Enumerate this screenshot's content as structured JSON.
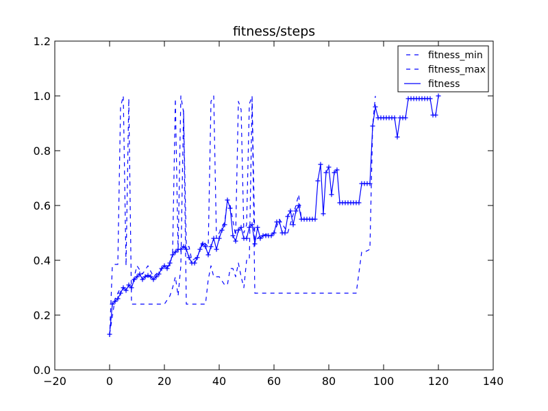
{
  "chart_data": {
    "type": "line",
    "title": "fitness/steps",
    "xlabel": "",
    "ylabel": "",
    "xlim": [
      -20,
      140
    ],
    "ylim": [
      0.0,
      1.2
    ],
    "x_ticks": [
      "−20",
      "0",
      "20",
      "40",
      "60",
      "80",
      "100",
      "120",
      "140"
    ],
    "y_ticks": [
      "0.0",
      "0.2",
      "0.4",
      "0.6",
      "0.8",
      "1.0",
      "1.2"
    ],
    "x_tick_values": [
      -20,
      0,
      20,
      40,
      60,
      80,
      100,
      120,
      140
    ],
    "y_tick_values": [
      0.0,
      0.2,
      0.4,
      0.6,
      0.8,
      1.0,
      1.2
    ],
    "grid": false,
    "legend_position": "top-right",
    "color": "#0000ff",
    "series": [
      {
        "name": "fitness_min",
        "style": "dashed",
        "points": [
          [
            0,
            0.12
          ],
          [
            1,
            0.38
          ],
          [
            2,
            0.385
          ],
          [
            3,
            0.385
          ],
          [
            4,
            0.96
          ],
          [
            5,
            1.0
          ],
          [
            6,
            0.38
          ],
          [
            7,
            0.99
          ],
          [
            8,
            0.24
          ],
          [
            10,
            0.24
          ],
          [
            15,
            0.24
          ],
          [
            20,
            0.24
          ],
          [
            22,
            0.27
          ],
          [
            23,
            0.3
          ],
          [
            24,
            0.34
          ],
          [
            25,
            0.27
          ],
          [
            26,
            0.38
          ],
          [
            27,
            0.95
          ],
          [
            28,
            0.24
          ],
          [
            30,
            0.24
          ],
          [
            33,
            0.24
          ],
          [
            35,
            0.24
          ],
          [
            36,
            0.33
          ],
          [
            37,
            0.38
          ],
          [
            38,
            0.34
          ],
          [
            40,
            0.34
          ],
          [
            42,
            0.31
          ],
          [
            43,
            0.31
          ],
          [
            44,
            0.37
          ],
          [
            45,
            0.37
          ],
          [
            46,
            0.34
          ],
          [
            47,
            0.39
          ],
          [
            48,
            0.34
          ],
          [
            49,
            0.3
          ],
          [
            50,
            0.4
          ],
          [
            51,
            0.4
          ],
          [
            52,
            0.99
          ],
          [
            53,
            0.28
          ],
          [
            60,
            0.28
          ],
          [
            70,
            0.28
          ],
          [
            80,
            0.28
          ],
          [
            90,
            0.28
          ],
          [
            92,
            0.43
          ],
          [
            93,
            0.43
          ],
          [
            95,
            0.44
          ],
          [
            96,
            0.89
          ],
          [
            97,
            1.0
          ]
        ]
      },
      {
        "name": "fitness_max",
        "style": "dashed",
        "points": [
          [
            0,
            0.13
          ],
          [
            2,
            0.26
          ],
          [
            4,
            0.3
          ],
          [
            6,
            0.3
          ],
          [
            8,
            0.3
          ],
          [
            10,
            0.38
          ],
          [
            12,
            0.35
          ],
          [
            14,
            0.38
          ],
          [
            16,
            0.34
          ],
          [
            18,
            0.36
          ],
          [
            20,
            0.38
          ],
          [
            22,
            0.38
          ],
          [
            23,
            0.43
          ],
          [
            24,
            0.99
          ],
          [
            25,
            0.43
          ],
          [
            26,
            1.0
          ],
          [
            27,
            0.94
          ],
          [
            28,
            0.45
          ],
          [
            29,
            0.45
          ],
          [
            30,
            0.4
          ],
          [
            32,
            0.41
          ],
          [
            34,
            0.47
          ],
          [
            36,
            0.45
          ],
          [
            37,
            0.98
          ],
          [
            38,
            1.0
          ],
          [
            39,
            0.48
          ],
          [
            40,
            0.5
          ],
          [
            42,
            0.54
          ],
          [
            43,
            0.62
          ],
          [
            44,
            0.6
          ],
          [
            46,
            0.49
          ],
          [
            47,
            0.98
          ],
          [
            48,
            0.95
          ],
          [
            49,
            0.5
          ],
          [
            50,
            0.53
          ],
          [
            51,
            0.97
          ],
          [
            52,
            1.0
          ],
          [
            53,
            0.47
          ],
          [
            55,
            0.49
          ],
          [
            60,
            0.5
          ],
          [
            62,
            0.55
          ],
          [
            65,
            0.5
          ],
          [
            68,
            0.6
          ],
          [
            69,
            0.64
          ],
          [
            70,
            0.55
          ],
          [
            75,
            0.55
          ]
        ]
      },
      {
        "name": "fitness",
        "style": "solid-markers",
        "points": [
          [
            0,
            0.13
          ],
          [
            1,
            0.24
          ],
          [
            2,
            0.25
          ],
          [
            3,
            0.26
          ],
          [
            4,
            0.28
          ],
          [
            5,
            0.3
          ],
          [
            6,
            0.29
          ],
          [
            7,
            0.31
          ],
          [
            8,
            0.3
          ],
          [
            9,
            0.33
          ],
          [
            10,
            0.34
          ],
          [
            11,
            0.35
          ],
          [
            12,
            0.33
          ],
          [
            13,
            0.34
          ],
          [
            14,
            0.345
          ],
          [
            15,
            0.34
          ],
          [
            16,
            0.33
          ],
          [
            17,
            0.34
          ],
          [
            18,
            0.35
          ],
          [
            19,
            0.37
          ],
          [
            20,
            0.38
          ],
          [
            21,
            0.37
          ],
          [
            22,
            0.39
          ],
          [
            23,
            0.42
          ],
          [
            24,
            0.43
          ],
          [
            25,
            0.44
          ],
          [
            26,
            0.44
          ],
          [
            27,
            0.45
          ],
          [
            28,
            0.44
          ],
          [
            29,
            0.41
          ],
          [
            30,
            0.39
          ],
          [
            31,
            0.39
          ],
          [
            32,
            0.41
          ],
          [
            33,
            0.44
          ],
          [
            34,
            0.46
          ],
          [
            35,
            0.45
          ],
          [
            36,
            0.42
          ],
          [
            37,
            0.45
          ],
          [
            38,
            0.48
          ],
          [
            39,
            0.44
          ],
          [
            40,
            0.48
          ],
          [
            41,
            0.51
          ],
          [
            42,
            0.53
          ],
          [
            43,
            0.62
          ],
          [
            44,
            0.59
          ],
          [
            45,
            0.49
          ],
          [
            46,
            0.47
          ],
          [
            47,
            0.51
          ],
          [
            48,
            0.52
          ],
          [
            49,
            0.48
          ],
          [
            50,
            0.48
          ],
          [
            51,
            0.52
          ],
          [
            52,
            0.53
          ],
          [
            53,
            0.46
          ],
          [
            54,
            0.52
          ],
          [
            55,
            0.48
          ],
          [
            56,
            0.49
          ],
          [
            57,
            0.49
          ],
          [
            58,
            0.49
          ],
          [
            59,
            0.49
          ],
          [
            60,
            0.5
          ],
          [
            61,
            0.54
          ],
          [
            62,
            0.54
          ],
          [
            63,
            0.5
          ],
          [
            64,
            0.5
          ],
          [
            65,
            0.56
          ],
          [
            66,
            0.58
          ],
          [
            67,
            0.53
          ],
          [
            68,
            0.58
          ],
          [
            69,
            0.6
          ],
          [
            70,
            0.55
          ],
          [
            71,
            0.55
          ],
          [
            72,
            0.55
          ],
          [
            73,
            0.55
          ],
          [
            74,
            0.55
          ],
          [
            75,
            0.55
          ],
          [
            76,
            0.69
          ],
          [
            77,
            0.75
          ],
          [
            78,
            0.57
          ],
          [
            79,
            0.72
          ],
          [
            80,
            0.74
          ],
          [
            81,
            0.64
          ],
          [
            82,
            0.72
          ],
          [
            83,
            0.73
          ],
          [
            84,
            0.61
          ],
          [
            85,
            0.61
          ],
          [
            86,
            0.61
          ],
          [
            87,
            0.61
          ],
          [
            88,
            0.61
          ],
          [
            89,
            0.61
          ],
          [
            90,
            0.61
          ],
          [
            91,
            0.61
          ],
          [
            92,
            0.68
          ],
          [
            93,
            0.68
          ],
          [
            94,
            0.68
          ],
          [
            95,
            0.68
          ],
          [
            96,
            0.89
          ],
          [
            97,
            0.96
          ],
          [
            98,
            0.92
          ],
          [
            99,
            0.92
          ],
          [
            100,
            0.92
          ],
          [
            101,
            0.92
          ],
          [
            102,
            0.92
          ],
          [
            103,
            0.92
          ],
          [
            104,
            0.92
          ],
          [
            105,
            0.85
          ],
          [
            106,
            0.92
          ],
          [
            107,
            0.92
          ],
          [
            108,
            0.92
          ],
          [
            109,
            0.99
          ],
          [
            110,
            0.99
          ],
          [
            111,
            0.99
          ],
          [
            112,
            0.99
          ],
          [
            113,
            0.99
          ],
          [
            114,
            0.99
          ],
          [
            115,
            0.99
          ],
          [
            116,
            0.99
          ],
          [
            117,
            0.99
          ],
          [
            118,
            0.93
          ],
          [
            119,
            0.93
          ],
          [
            120,
            1.0
          ]
        ]
      }
    ]
  }
}
